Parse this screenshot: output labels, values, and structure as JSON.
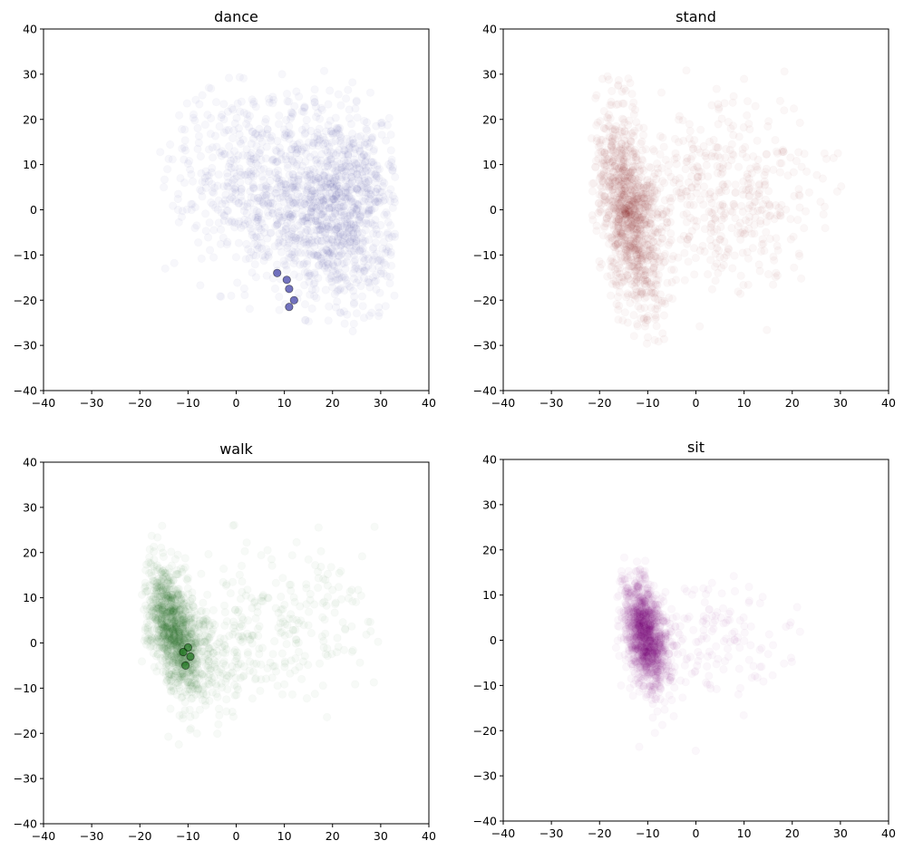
{
  "chart_data": [
    {
      "type": "scatter",
      "title": "dance",
      "xlim": [
        -40,
        40
      ],
      "ylim": [
        -40,
        40
      ],
      "xticks": [
        -40,
        -30,
        -20,
        -10,
        0,
        10,
        20,
        30,
        40
      ],
      "yticks": [
        -40,
        -30,
        -20,
        -10,
        0,
        10,
        20,
        30,
        40
      ],
      "color": "#00008b",
      "marker_alpha": 0.03,
      "grid": false,
      "series": [
        {
          "clusters": [
            {
              "cx": 22,
              "cy": 0,
              "sx": 6.5,
              "sy": 11,
              "rho": 0,
              "weight": 0.62
            },
            {
              "cx": 8,
              "cy": 3,
              "sx": 8,
              "sy": 10,
              "rho": 0,
              "weight": 0.25
            },
            {
              "cx": 0,
              "cy": 10,
              "sx": 8,
              "sy": 9,
              "rho": 0,
              "weight": 0.13
            }
          ],
          "bounds": {
            "xmin": -18,
            "xmax": 33,
            "ymin": -27,
            "ymax": 31
          },
          "dense_edge_points": [
            [
              8.5,
              -14
            ],
            [
              11,
              -21.5
            ],
            [
              12,
              -20
            ],
            [
              11,
              -17.5
            ],
            [
              10.5,
              -15.5
            ]
          ]
        }
      ]
    },
    {
      "type": "scatter",
      "title": "stand",
      "xlim": [
        -40,
        40
      ],
      "ylim": [
        -40,
        40
      ],
      "xticks": [
        -40,
        -30,
        -20,
        -10,
        0,
        10,
        20,
        30,
        40
      ],
      "yticks": [
        -40,
        -30,
        -20,
        -10,
        0,
        10,
        20,
        30,
        40
      ],
      "color": "#8b0000",
      "marker_alpha": 0.03,
      "grid": false,
      "series": [
        {
          "clusters": [
            {
              "cx": -14,
              "cy": 0,
              "sx": 3.3,
              "sy": 11,
              "rho": -0.45,
              "weight": 0.7
            },
            {
              "cx": 5,
              "cy": 2,
              "sx": 10,
              "sy": 10,
              "rho": 0,
              "weight": 0.3
            }
          ],
          "bounds": {
            "xmin": -22,
            "xmax": 32,
            "ymin": -30,
            "ymax": 32
          },
          "dense_edge_points": []
        }
      ]
    },
    {
      "type": "scatter",
      "title": "walk",
      "xlim": [
        -40,
        40
      ],
      "ylim": [
        -40,
        40
      ],
      "xticks": [
        -40,
        -30,
        -20,
        -10,
        0,
        10,
        20,
        30,
        40
      ],
      "yticks": [
        -40,
        -30,
        -20,
        -10,
        0,
        10,
        20,
        30,
        40
      ],
      "color": "#006400",
      "marker_alpha": 0.03,
      "grid": false,
      "series": [
        {
          "clusters": [
            {
              "cx": -13,
              "cy": 3,
              "sx": 2.8,
              "sy": 7,
              "rho": -0.5,
              "weight": 0.72
            },
            {
              "cx": -5,
              "cy": -2,
              "sx": 6,
              "sy": 8,
              "rho": 0,
              "weight": 0.16
            },
            {
              "cx": 12,
              "cy": 5,
              "sx": 9,
              "sy": 9,
              "rho": 0,
              "weight": 0.12
            }
          ],
          "bounds": {
            "xmin": -20,
            "xmax": 30,
            "ymin": -24,
            "ymax": 27
          },
          "dense_edge_points": [
            [
              -10,
              -1
            ],
            [
              -10.5,
              -5
            ],
            [
              -11,
              -2
            ],
            [
              -9.5,
              -3
            ]
          ]
        }
      ]
    },
    {
      "type": "scatter",
      "title": "sit",
      "xlim": [
        -40,
        40
      ],
      "ylim": [
        -40,
        40
      ],
      "xticks": [
        -40,
        -30,
        -20,
        -10,
        0,
        10,
        20,
        30,
        40
      ],
      "yticks": [
        -40,
        -30,
        -20,
        -10,
        0,
        10,
        20,
        30,
        40
      ],
      "color": "#8b008b",
      "marker_alpha": 0.03,
      "grid": false,
      "series": [
        {
          "clusters": [
            {
              "cx": -10.5,
              "cy": 1,
              "sx": 2.3,
              "sy": 6,
              "rho": -0.4,
              "weight": 0.9
            },
            {
              "cx": 3,
              "cy": 0,
              "sx": 8,
              "sy": 7,
              "rho": 0,
              "weight": 0.1
            }
          ],
          "bounds": {
            "xmin": -17,
            "xmax": 23,
            "ymin": -26,
            "ymax": 19
          },
          "dense_edge_points": []
        }
      ]
    }
  ]
}
